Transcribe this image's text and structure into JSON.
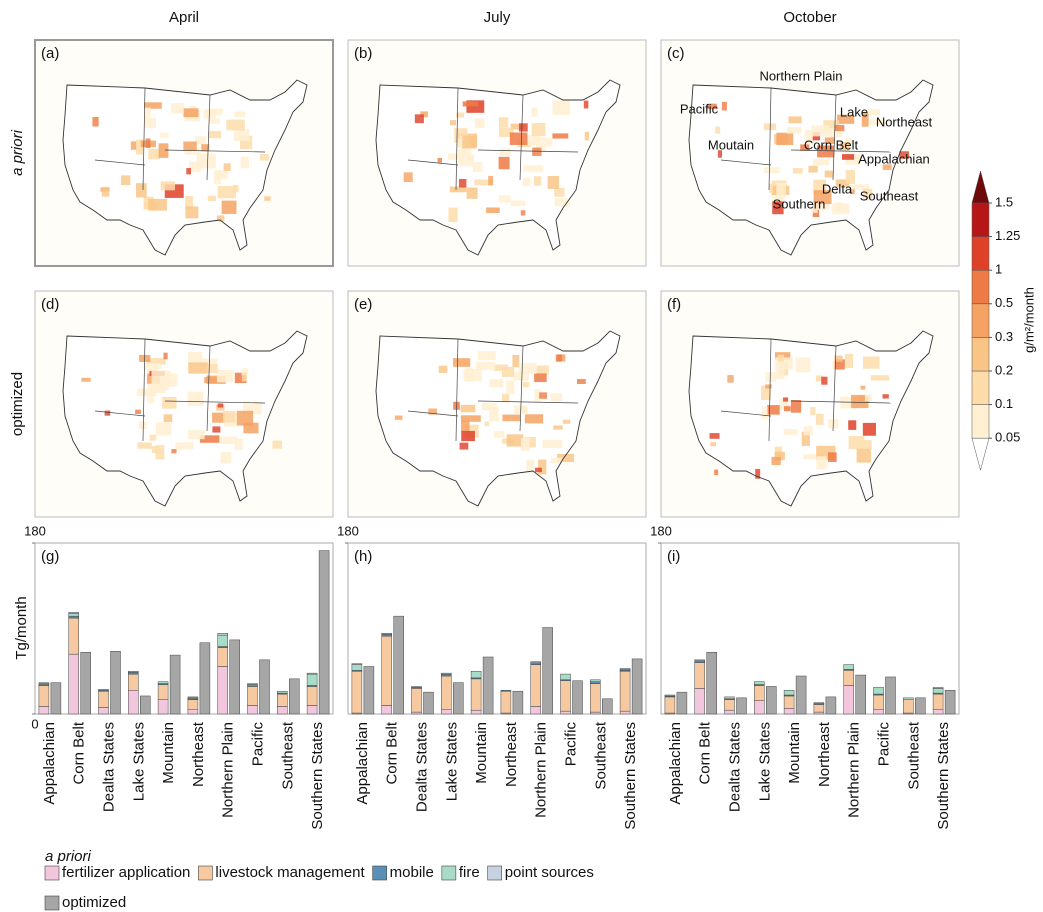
{
  "column_titles": [
    "April",
    "July",
    "October"
  ],
  "row_titles": [
    "a priori",
    "optimized"
  ],
  "maps": [
    {
      "label": "(a)"
    },
    {
      "label": "(b)"
    },
    {
      "label": "(c)",
      "regions": [
        "Northern Plain",
        "Pacific",
        "Lake",
        "Northeast",
        "Moutain",
        "Corn Belt",
        "Appalachian",
        "Delta",
        "Southeast",
        "Southern"
      ]
    },
    {
      "label": "(d)"
    },
    {
      "label": "(e)"
    },
    {
      "label": "(f)"
    }
  ],
  "colorbar": {
    "label": "g/m²/month",
    "ticks": [
      0.05,
      0.1,
      0.2,
      0.3,
      0.5,
      1,
      1.25,
      1.5
    ],
    "colors": [
      "#ffffff",
      "#fff0d2",
      "#fddcaa",
      "#f9c586",
      "#f5a262",
      "#ee7a45",
      "#de4128",
      "#b71616",
      "#6e0a0a"
    ]
  },
  "legend": {
    "title": "a priori",
    "entries": [
      {
        "name": "fertilizer application",
        "color": "#f2c6dc"
      },
      {
        "name": "livestock management",
        "color": "#f6c9a0"
      },
      {
        "name": "mobile",
        "color": "#5a8fb8"
      },
      {
        "name": "fire",
        "color": "#a9dcc6"
      },
      {
        "name": "point sources",
        "color": "#c6d2e0"
      },
      {
        "name": "optimized",
        "color": "#a6a6a6"
      }
    ]
  },
  "chart_data": [
    {
      "type": "bar",
      "panel_label": "(g)",
      "ylabel": "Tg/month",
      "ylim": [
        0,
        180
      ],
      "yticks": [
        0,
        180
      ],
      "categories": [
        "Appalachian",
        "Corn Belt",
        "Dealta States",
        "Lake States",
        "Mountain",
        "Northeast",
        "Northern Plain",
        "Pacific",
        "Southeast",
        "Southern States"
      ],
      "series": [
        {
          "values": [
            8,
            63,
            7,
            25,
            15,
            5,
            50,
            9,
            8,
            9
          ]
        },
        {
          "values": [
            22,
            38,
            17,
            17,
            16,
            10,
            20,
            20,
            13,
            20
          ]
        },
        {
          "values": [
            1,
            2,
            1,
            2,
            1,
            1,
            1,
            2,
            1,
            1
          ]
        },
        {
          "values": [
            1,
            3,
            1,
            1,
            2,
            1,
            12,
            1,
            2,
            12
          ]
        },
        {
          "values": [
            1,
            1,
            0,
            0,
            0,
            1,
            2,
            0,
            0,
            1
          ]
        },
        {
          "values": [
            33,
            65,
            66,
            19,
            62,
            75,
            78,
            57,
            37,
            172
          ]
        }
      ]
    },
    {
      "type": "bar",
      "panel_label": "(h)",
      "ylim": [
        0,
        180
      ],
      "yticks": [
        180
      ],
      "categories": [
        "Appalachian",
        "Corn Belt",
        "Dealta States",
        "Lake States",
        "Mountain",
        "Northeast",
        "Northern Plain",
        "Pacific",
        "Southeast",
        "Southern States"
      ],
      "series": [
        {
          "values": [
            1,
            9,
            2,
            5,
            4,
            1,
            8,
            3,
            2,
            3
          ]
        },
        {
          "values": [
            44,
            73,
            25,
            35,
            33,
            23,
            44,
            32,
            30,
            42
          ]
        },
        {
          "values": [
            1,
            2,
            1,
            2,
            1,
            1,
            1,
            1,
            2,
            1
          ]
        },
        {
          "values": [
            6,
            1,
            1,
            1,
            7,
            0,
            1,
            6,
            2,
            1
          ]
        },
        {
          "values": [
            1,
            0,
            0,
            0,
            0,
            0,
            1,
            0,
            0,
            1
          ]
        },
        {
          "values": [
            50,
            103,
            23,
            33,
            60,
            24,
            91,
            35,
            16,
            58
          ]
        }
      ]
    },
    {
      "type": "bar",
      "panel_label": "(i)",
      "ylim": [
        0,
        180
      ],
      "yticks": [
        180
      ],
      "categories": [
        "Appalachian",
        "Corn Belt",
        "Dealta States",
        "Lake States",
        "Mountain",
        "Northeast",
        "Northern Plain",
        "Pacific",
        "Southeast",
        "Southern States"
      ],
      "series": [
        {
          "values": [
            1,
            27,
            4,
            14,
            6,
            2,
            30,
            5,
            1,
            5
          ]
        },
        {
          "values": [
            17,
            27,
            11,
            16,
            13,
            8,
            16,
            15,
            14,
            16
          ]
        },
        {
          "values": [
            1,
            1,
            1,
            1,
            1,
            1,
            1,
            1,
            0,
            1
          ]
        },
        {
          "values": [
            1,
            1,
            2,
            3,
            5,
            1,
            5,
            7,
            2,
            5
          ]
        },
        {
          "values": [
            0,
            1,
            0,
            0,
            0,
            0,
            0,
            0,
            0,
            1
          ]
        },
        {
          "values": [
            23,
            65,
            17,
            29,
            40,
            18,
            41,
            39,
            17,
            25
          ]
        }
      ]
    }
  ]
}
